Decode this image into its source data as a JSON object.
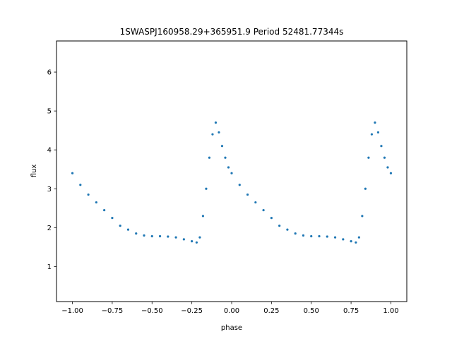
{
  "chart_data": {
    "type": "scatter",
    "title": "1SWASPJ160958.29+365951.9 Period 52481.77344s",
    "xlabel": "phase",
    "ylabel": "flux",
    "xlim": [
      -1.1,
      1.1
    ],
    "ylim": [
      0.1,
      6.8
    ],
    "x_ticks": [
      -1.0,
      -0.75,
      -0.5,
      -0.25,
      0.0,
      0.25,
      0.5,
      0.75,
      1.0
    ],
    "x_tick_labels": [
      "−1.00",
      "−0.75",
      "−0.50",
      "−0.25",
      "0.00",
      "0.25",
      "0.50",
      "0.75",
      "1.00"
    ],
    "y_ticks": [
      1,
      2,
      3,
      4,
      5,
      6
    ],
    "y_tick_labels": [
      "1",
      "2",
      "3",
      "4",
      "5",
      "6"
    ],
    "grid": false,
    "marker_color": "#1f77b4",
    "series": [
      {
        "x": [
          -1.0,
          -0.95,
          -0.9,
          -0.85,
          -0.8,
          -0.75,
          -0.7,
          -0.65,
          -0.6,
          -0.55,
          -0.5,
          -0.45,
          -0.4,
          -0.35,
          -0.3,
          -0.25,
          -0.22,
          -0.2,
          -0.18,
          -0.16,
          -0.14,
          -0.12,
          -0.1,
          -0.08,
          -0.06,
          -0.04,
          -0.02,
          0.0,
          0.05,
          0.1,
          0.15,
          0.2,
          0.25,
          0.3,
          0.35,
          0.4,
          0.45,
          0.5,
          0.55,
          0.6,
          0.65,
          0.7,
          0.75,
          0.78,
          0.8,
          0.82,
          0.84,
          0.86,
          0.88,
          0.9,
          0.92,
          0.94,
          0.96,
          0.98,
          1.0
        ],
        "y": [
          3.4,
          3.1,
          2.85,
          2.65,
          2.45,
          2.25,
          2.05,
          1.95,
          1.85,
          1.8,
          1.78,
          1.78,
          1.77,
          1.75,
          1.7,
          1.65,
          1.62,
          1.75,
          2.3,
          3.0,
          3.8,
          4.4,
          4.7,
          4.45,
          4.1,
          3.8,
          3.55,
          3.4,
          3.1,
          2.85,
          2.65,
          2.45,
          2.25,
          2.05,
          1.95,
          1.85,
          1.8,
          1.78,
          1.78,
          1.77,
          1.75,
          1.7,
          1.65,
          1.62,
          1.75,
          2.3,
          3.0,
          3.8,
          4.4,
          4.7,
          4.45,
          4.1,
          3.8,
          3.55,
          3.4
        ]
      }
    ]
  }
}
